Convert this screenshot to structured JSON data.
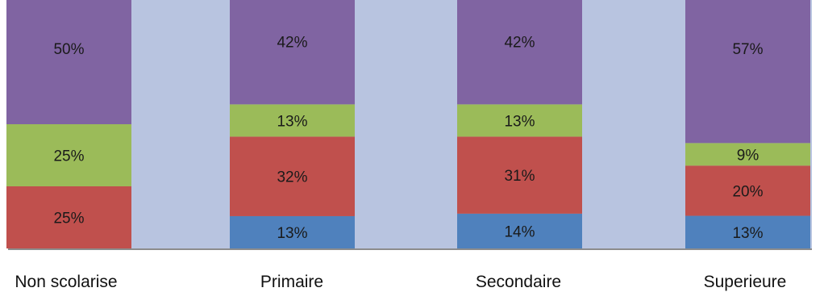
{
  "chart_data": {
    "type": "bar",
    "stacked": true,
    "percent_stacked": true,
    "categories": [
      "Non scolarise",
      "Primaire",
      "Secondaire",
      "Superieure"
    ],
    "series": [
      {
        "values": [
          0,
          13,
          14,
          13
        ],
        "labels": [
          "",
          "13%",
          "14%",
          "13%"
        ],
        "color": "#4F81BD"
      },
      {
        "values": [
          25,
          32,
          31,
          20
        ],
        "labels": [
          "25%",
          "32%",
          "31%",
          "20%"
        ],
        "color": "#C0504D"
      },
      {
        "values": [
          25,
          13,
          13,
          9
        ],
        "labels": [
          "25%",
          "13%",
          "13%",
          "9%"
        ],
        "color": "#9BBB59"
      },
      {
        "values": [
          50,
          42,
          42,
          57
        ],
        "labels": [
          "50%",
          "42%",
          "42%",
          "57%"
        ],
        "color": "#8064A2"
      }
    ],
    "plot_background": "#B8C4E0",
    "axis_color": "#8C8C8C",
    "title": "",
    "xlabel": "",
    "ylabel": "",
    "ylim": [
      0,
      100
    ],
    "grid": false,
    "legend": "none"
  }
}
